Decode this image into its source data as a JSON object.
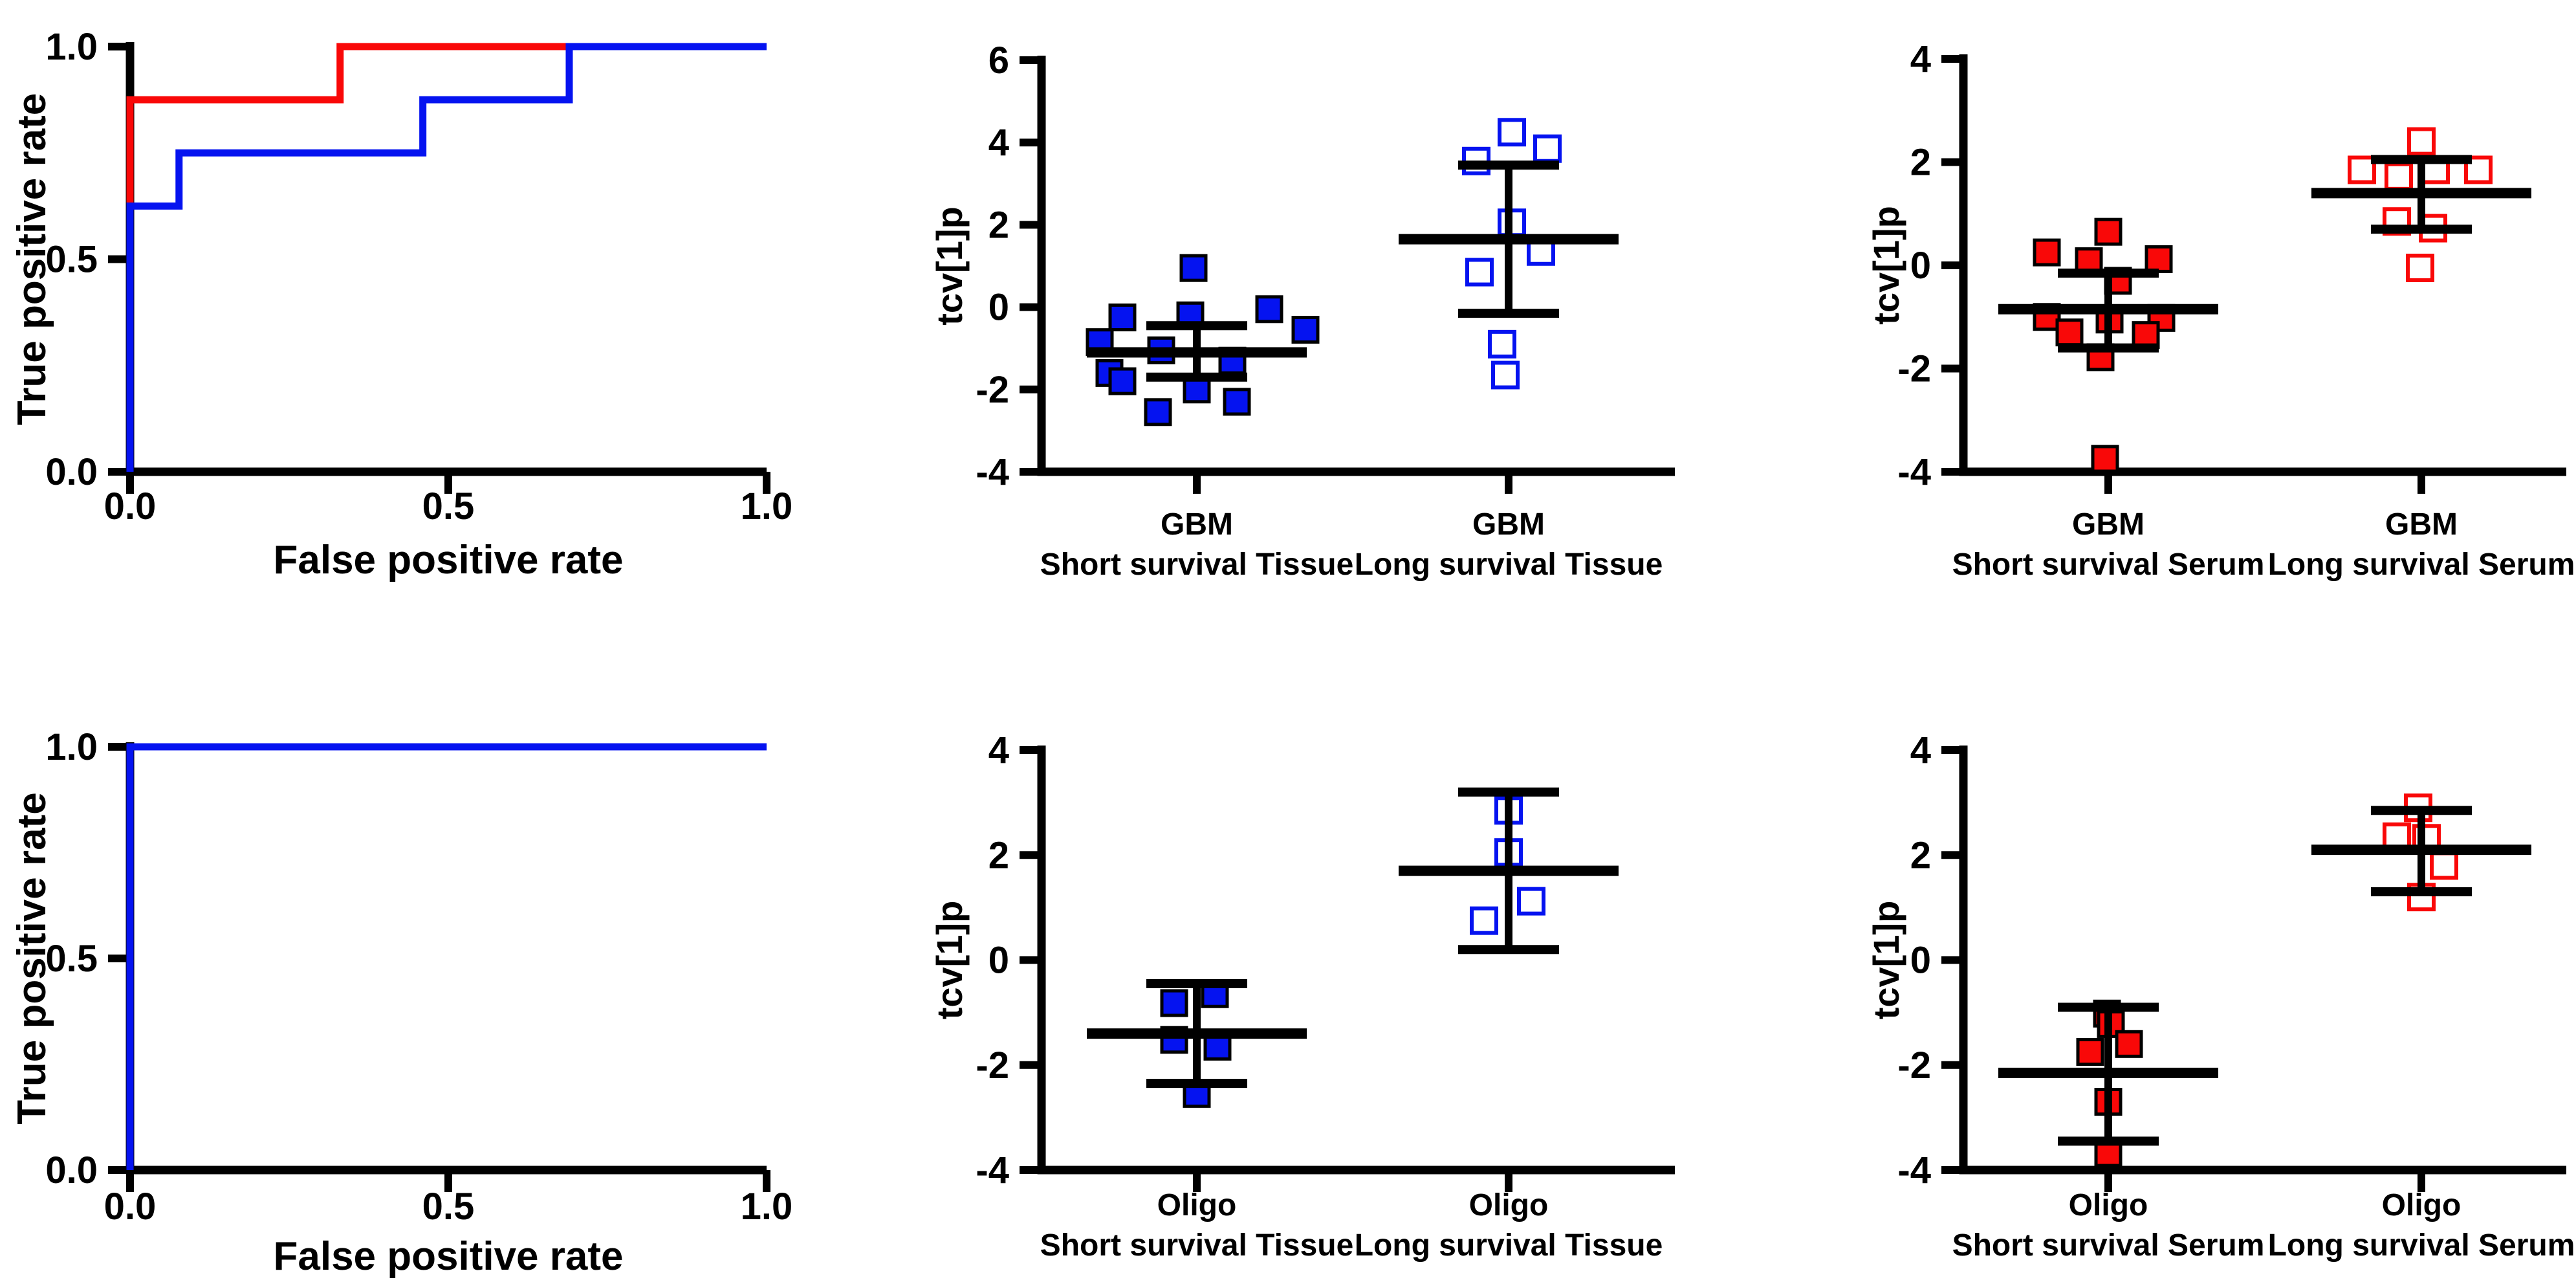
{
  "colors": {
    "blue": "#0513F0",
    "red": "#F90808",
    "axis": "#000000",
    "background": "#FFFFFF",
    "open_marker_fill": "#FFFFFF"
  },
  "chart_data": {
    "point_format": "[x_offset_px_from_group_center, tcv1p_value]",
    "roc_point_format": "[false_positive_rate, true_positive_rate]",
    "panels": [
      {
        "id": "roc-gbm",
        "type": "roc",
        "xlabel": "False positive rate",
        "ylabel": "True positive rate",
        "xlim": [
          0,
          1
        ],
        "ylim": [
          0,
          1
        ],
        "xticks": [
          "0.0",
          "0.5",
          "1.0"
        ],
        "yticks": [
          "0.0",
          "0.5",
          "1.0"
        ],
        "grid": false,
        "legend": "none",
        "curves": [
          {
            "name": "red-roc-curve",
            "color": "#F90808",
            "points": [
              [
                0,
                0
              ],
              [
                0,
                0.875
              ],
              [
                0.33,
                0.875
              ],
              [
                0.33,
                1
              ],
              [
                1,
                1
              ]
            ]
          },
          {
            "name": "blue-roc-curve",
            "color": "#0513F0",
            "points": [
              [
                0,
                0
              ],
              [
                0,
                0.625
              ],
              [
                0.077,
                0.625
              ],
              [
                0.077,
                0.75
              ],
              [
                0.46,
                0.75
              ],
              [
                0.46,
                0.875
              ],
              [
                0.69,
                0.875
              ],
              [
                0.69,
                1
              ],
              [
                1,
                1
              ]
            ]
          }
        ]
      },
      {
        "id": "scatter-gbm-tissue",
        "type": "scatter",
        "ylabel": "tcv[1]p",
        "ylim": [
          -4,
          6
        ],
        "yticks": [
          "6",
          "4",
          "2",
          "0",
          "-2",
          "-4"
        ],
        "grid": false,
        "legend": "none",
        "groups": [
          {
            "name": "GBM",
            "label": "Short survival Tissue",
            "marker": "filled",
            "color": "#0513F0",
            "mean": -1.1,
            "sd_upper": -0.45,
            "sd_lower": -1.7,
            "points": [
              [
                -5,
                0.95
              ],
              [
                -115,
                -0.25
              ],
              [
                -10,
                -0.2
              ],
              [
                112,
                -0.05
              ],
              [
                168,
                -0.55
              ],
              [
                -150,
                -0.85
              ],
              [
                -55,
                -1.05
              ],
              [
                55,
                -1.3
              ],
              [
                -135,
                -1.6
              ],
              [
                -115,
                -1.8
              ],
              [
                0,
                -2.0
              ],
              [
                62,
                -2.3
              ],
              [
                -60,
                -2.55
              ]
            ]
          },
          {
            "name": "GBM",
            "label": "Long survival Tissue",
            "marker": "open",
            "color": "#0513F0",
            "mean": 1.65,
            "sd_upper": 3.45,
            "sd_lower": -0.15,
            "points": [
              [
                5,
                4.25
              ],
              [
                60,
                3.85
              ],
              [
                -50,
                3.55
              ],
              [
                5,
                2.05
              ],
              [
                50,
                1.35
              ],
              [
                -45,
                0.85
              ],
              [
                -10,
                -0.9
              ],
              [
                -5,
                -1.65
              ]
            ]
          }
        ]
      },
      {
        "id": "scatter-gbm-serum",
        "type": "scatter",
        "ylabel": "tcv[1]p",
        "ylim": [
          -4,
          4
        ],
        "yticks": [
          "4",
          "2",
          "0",
          "-2",
          "-4"
        ],
        "grid": false,
        "legend": "none",
        "groups": [
          {
            "name": "GBM",
            "label": "Short survival Serum",
            "marker": "filled",
            "color": "#F90808",
            "mean": -0.85,
            "sd_upper": -0.15,
            "sd_lower": -1.6,
            "points": [
              [
                0,
                0.65
              ],
              [
                -95,
                0.25
              ],
              [
                -30,
                0.08
              ],
              [
                78,
                0.12
              ],
              [
                15,
                -0.3
              ],
              [
                -95,
                -1.0
              ],
              [
                2,
                -1.05
              ],
              [
                82,
                -1.02
              ],
              [
                -60,
                -1.3
              ],
              [
                58,
                -1.35
              ],
              [
                -12,
                -1.78
              ],
              [
                -5,
                -3.75
              ]
            ]
          },
          {
            "name": "GBM",
            "label": "Long survival Serum",
            "marker": "open",
            "color": "#F90808",
            "mean": 1.4,
            "sd_upper": 2.05,
            "sd_lower": 0.7,
            "points": [
              [
                0,
                2.4
              ],
              [
                -92,
                1.85
              ],
              [
                -35,
                1.72
              ],
              [
                22,
                1.85
              ],
              [
                88,
                1.85
              ],
              [
                -38,
                0.85
              ],
              [
                18,
                0.72
              ],
              [
                -2,
                -0.05
              ]
            ]
          }
        ]
      },
      {
        "id": "roc-oligo",
        "type": "roc",
        "xlabel": "False positive rate",
        "ylabel": "True positive rate",
        "xlim": [
          0,
          1
        ],
        "ylim": [
          0,
          1
        ],
        "xticks": [
          "0.0",
          "0.5",
          "1.0"
        ],
        "yticks": [
          "0.0",
          "0.5",
          "1.0"
        ],
        "grid": false,
        "legend": "none",
        "curves": [
          {
            "name": "blue-roc-curve",
            "color": "#0513F0",
            "points": [
              [
                0,
                0
              ],
              [
                0,
                1
              ],
              [
                1,
                1
              ]
            ]
          }
        ]
      },
      {
        "id": "scatter-oligo-tissue",
        "type": "scatter",
        "ylabel": "tcv[1]p",
        "ylim": [
          -4,
          4
        ],
        "yticks": [
          "4",
          "2",
          "0",
          "-2",
          "-4"
        ],
        "grid": false,
        "legend": "none",
        "groups": [
          {
            "name": "Oligo",
            "label": "Short survival Tissue",
            "marker": "filled",
            "color": "#0513F0",
            "mean": -1.4,
            "sd_upper": -0.45,
            "sd_lower": -2.35,
            "points": [
              [
                28,
                -0.65
              ],
              [
                -35,
                -0.82
              ],
              [
                -35,
                -1.52
              ],
              [
                32,
                -1.65
              ],
              [
                0,
                -2.55
              ]
            ]
          },
          {
            "name": "Oligo",
            "label": "Long survival Tissue",
            "marker": "open",
            "color": "#0513F0",
            "mean": 1.7,
            "sd_upper": 3.2,
            "sd_lower": 0.2,
            "points": [
              [
                0,
                2.85
              ],
              [
                0,
                2.05
              ],
              [
                35,
                1.12
              ],
              [
                -38,
                0.75
              ]
            ]
          }
        ]
      },
      {
        "id": "scatter-oligo-serum",
        "type": "scatter",
        "ylabel": "tcv[1]p",
        "ylim": [
          -4,
          4
        ],
        "yticks": [
          "4",
          "2",
          "0",
          "-2",
          "-4"
        ],
        "grid": false,
        "legend": "none",
        "groups": [
          {
            "name": "Oligo",
            "label": "Short survival Serum",
            "marker": "filled",
            "color": "#F90808",
            "mean": -2.15,
            "sd_upper": -0.9,
            "sd_lower": -3.45,
            "points": [
              [
                -2,
                -1.02
              ],
              [
                4,
                -1.22
              ],
              [
                32,
                -1.6
              ],
              [
                -28,
                -1.75
              ],
              [
                0,
                -2.7
              ],
              [
                0,
                -3.68
              ]
            ]
          },
          {
            "name": "Oligo",
            "label": "Long survival Serum",
            "marker": "open",
            "color": "#F90808",
            "mean": 2.1,
            "sd_upper": 2.85,
            "sd_lower": 1.3,
            "points": [
              [
                -5,
                2.9
              ],
              [
                -38,
                2.35
              ],
              [
                8,
                2.32
              ],
              [
                35,
                1.8
              ],
              [
                0,
                1.2
              ]
            ]
          }
        ]
      }
    ]
  }
}
